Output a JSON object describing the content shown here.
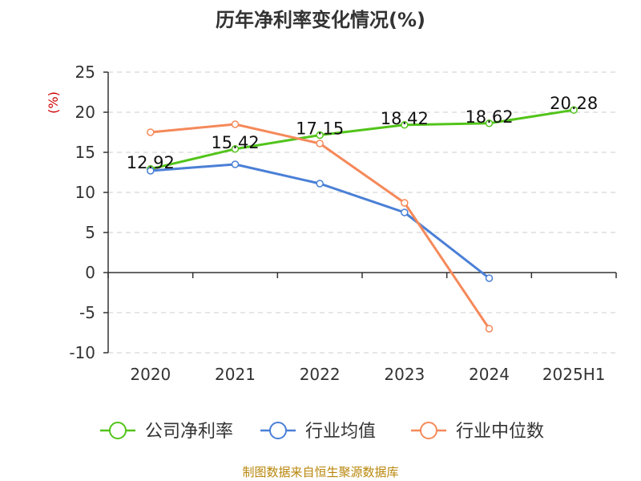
{
  "chart_data": {
    "type": "line",
    "title": "历年净利率变化情况(%)",
    "ylabel": "(%)",
    "categories": [
      "2020",
      "2021",
      "2022",
      "2023",
      "2024",
      "2025H1"
    ],
    "ylim": [
      -10,
      25
    ],
    "yticks": [
      25,
      20,
      15,
      10,
      5,
      0,
      -5,
      -10
    ],
    "grid": true,
    "legend_position": "bottom",
    "series": [
      {
        "name": "公司净利率",
        "color": "#52c41a",
        "values": [
          12.92,
          15.42,
          17.15,
          18.42,
          18.62,
          20.28
        ],
        "labels": [
          "12.92",
          "15.42",
          "17.15",
          "18.42",
          "18.62",
          "20.28"
        ]
      },
      {
        "name": "行业均值",
        "color": "#4a7fd6",
        "values": [
          12.7,
          13.5,
          11.1,
          7.5,
          -0.7,
          null
        ]
      },
      {
        "name": "行业中位数",
        "color": "#f5895a",
        "values": [
          17.5,
          18.5,
          16.1,
          8.7,
          -7.0,
          null
        ]
      }
    ]
  },
  "source": "制图数据来自恒生聚源数据库"
}
